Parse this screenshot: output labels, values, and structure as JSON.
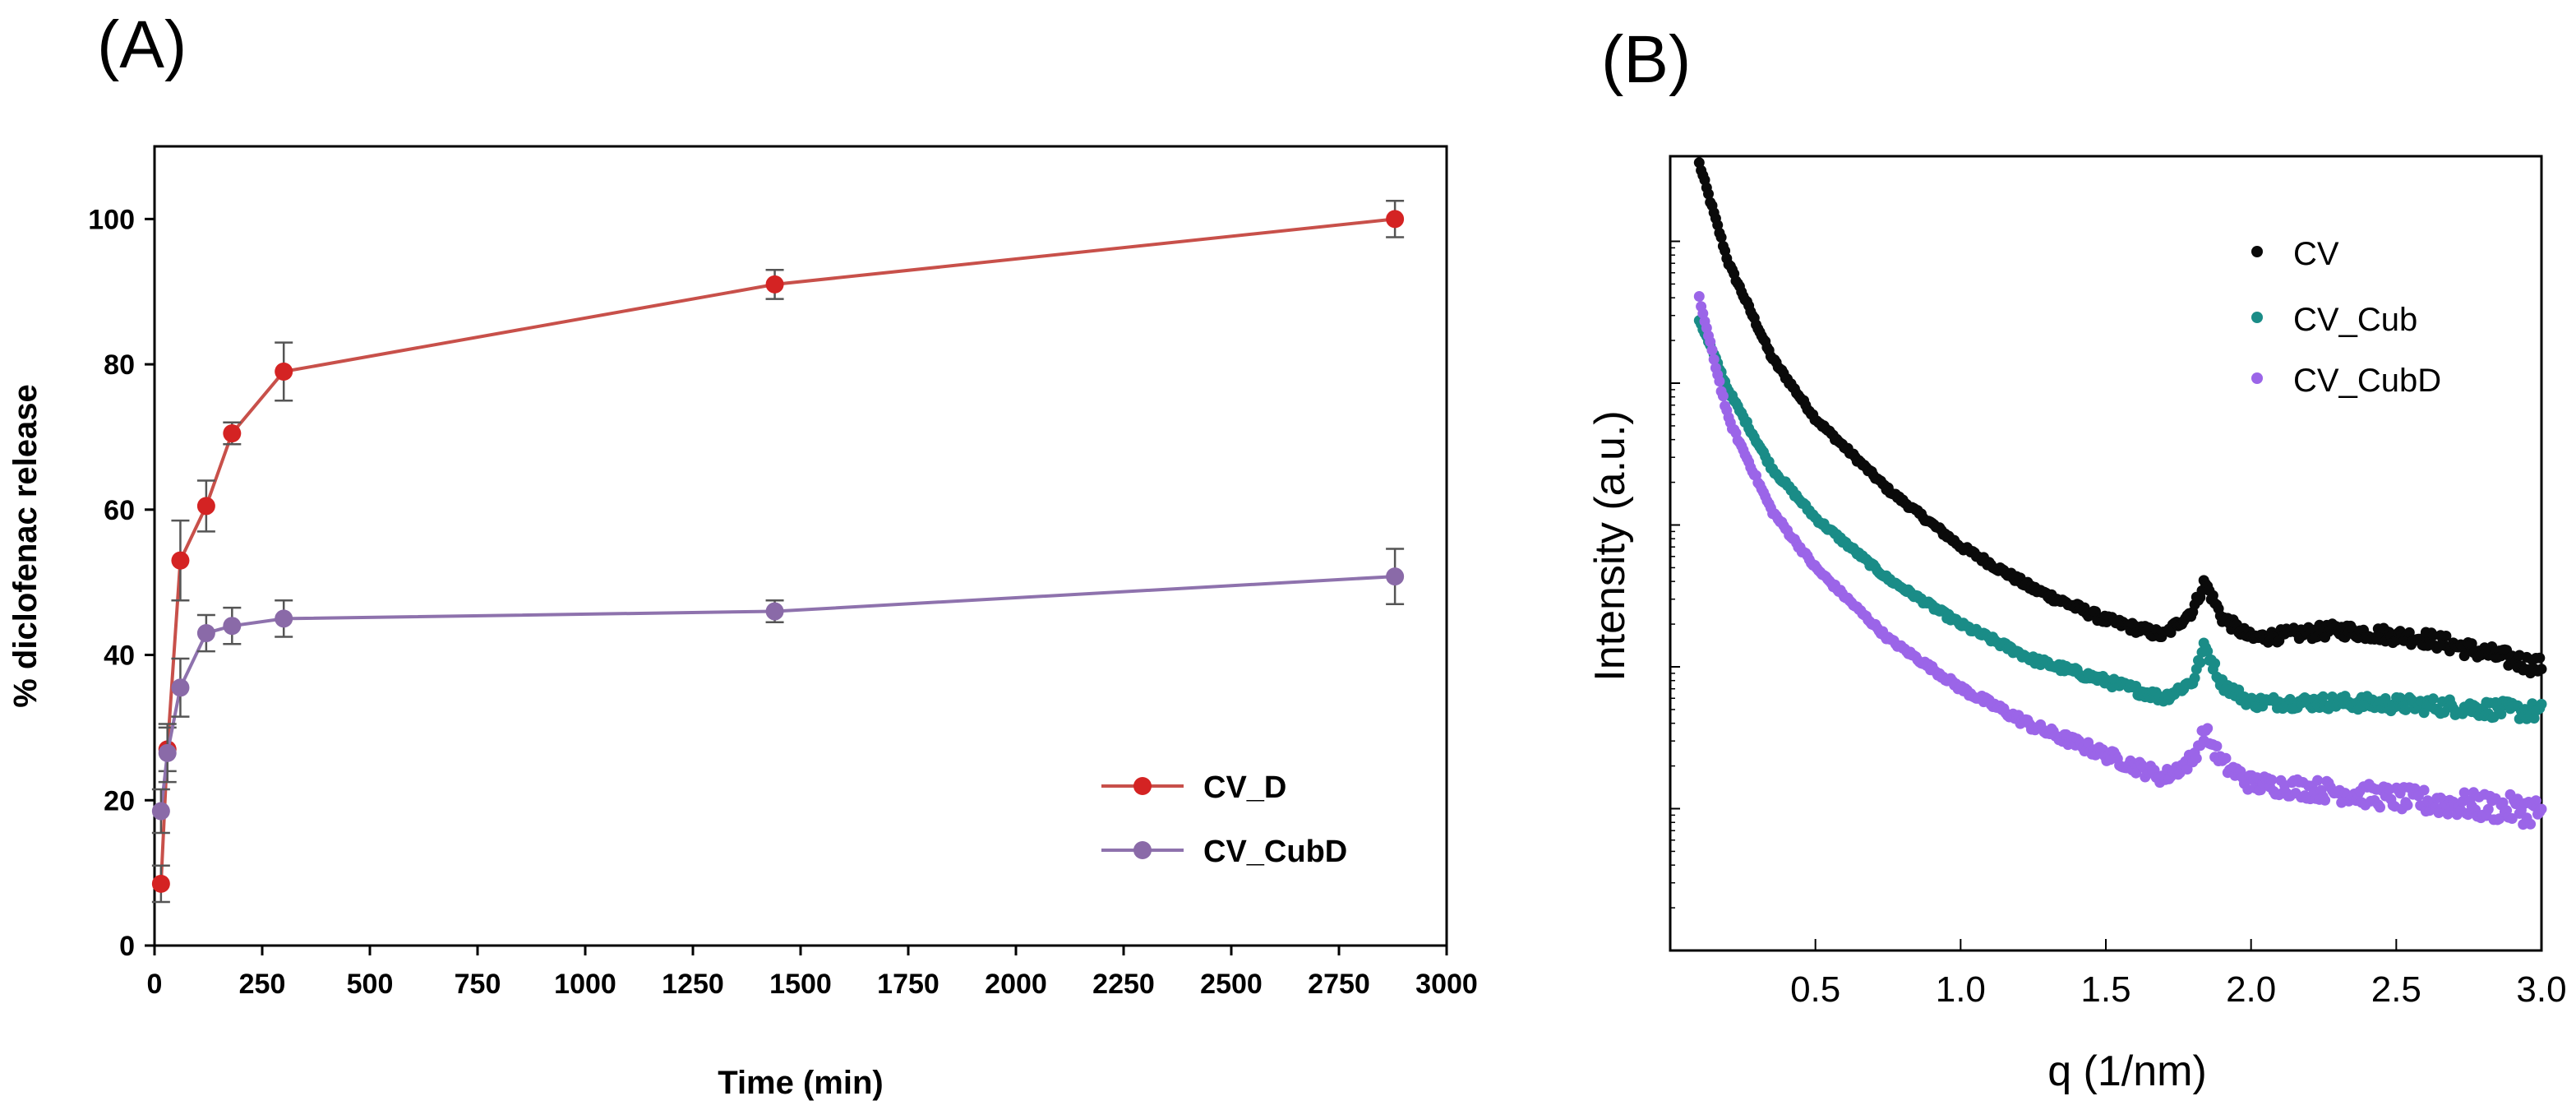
{
  "chart_data": [
    {
      "panel_label": "(A)",
      "type": "line",
      "xlabel": "Time  (min)",
      "ylabel": "% diclofenac  release",
      "xlim": [
        0,
        3000
      ],
      "ylim": [
        0,
        110
      ],
      "xticks": [
        0,
        250,
        500,
        750,
        1000,
        1250,
        1500,
        1750,
        2000,
        2250,
        2500,
        2750,
        3000
      ],
      "yticks": [
        0,
        20,
        40,
        60,
        80,
        100
      ],
      "legend_position": "lower-right",
      "series": [
        {
          "name": "CV_D",
          "color": "#d42323",
          "line_color": "#c8504a",
          "x": [
            15,
            30,
            60,
            120,
            180,
            300,
            1440,
            2880
          ],
          "y": [
            8.5,
            27,
            53,
            60.5,
            70.5,
            79,
            91,
            100
          ],
          "err": [
            2.5,
            3,
            5.5,
            3.5,
            1.5,
            4,
            2,
            2.5
          ]
        },
        {
          "name": "CV_CubD",
          "color": "#8a6aa8",
          "line_color": "#8e72ad",
          "x": [
            15,
            30,
            60,
            120,
            180,
            300,
            1440,
            2880
          ],
          "y": [
            18.5,
            26.5,
            35.5,
            43,
            44,
            45,
            46,
            50.8
          ],
          "err": [
            3,
            4,
            4,
            2.5,
            2.5,
            2.5,
            1.5,
            3.8
          ]
        }
      ]
    },
    {
      "panel_label": "(B)",
      "type": "scatter",
      "xlabel": "q  (1/nm)",
      "ylabel": "Intensity (a.u.)",
      "y_scale": "log",
      "xlim": [
        0,
        3.0
      ],
      "ylim_decades": [
        0,
        5.6
      ],
      "xticks": [
        0.5,
        1.0,
        1.5,
        2.0,
        2.5,
        3.0
      ],
      "xtick_labels": [
        "0.5",
        "1.0",
        "1.5",
        "2.0",
        "2.5",
        "3.0"
      ],
      "ytick_decades": [
        1,
        2,
        3,
        4,
        5
      ],
      "legend_position": "top-right",
      "series": [
        {
          "name": "CV",
          "color": "#0a0a0a",
          "profile": {
            "q": [
              0.1,
              0.2,
              0.35,
              0.5,
              0.75,
              1.0,
              1.25,
              1.5,
              1.7,
              1.8,
              1.84,
              1.9,
              2.0,
              2.3,
              2.6,
              3.0
            ],
            "log_intensity": [
              5.55,
              4.85,
              4.18,
              3.75,
              3.25,
              2.85,
              2.55,
              2.33,
              2.22,
              2.4,
              2.6,
              2.35,
              2.2,
              2.26,
              2.2,
              2.0
            ]
          },
          "peak_q": 1.84
        },
        {
          "name": "CV_Cub",
          "color": "#1a8c87",
          "profile": {
            "q": [
              0.1,
              0.2,
              0.35,
              0.5,
              0.75,
              1.0,
              1.25,
              1.5,
              1.7,
              1.8,
              1.84,
              1.9,
              2.0,
              2.3,
              2.6,
              3.0
            ],
            "log_intensity": [
              4.45,
              3.95,
              3.4,
              3.05,
              2.62,
              2.3,
              2.05,
              1.9,
              1.78,
              1.9,
              2.15,
              1.88,
              1.75,
              1.75,
              1.73,
              1.68
            ]
          },
          "peak_q": 1.84
        },
        {
          "name": "CV_CubD",
          "color": "#9b65e8",
          "profile": {
            "q": [
              0.1,
              0.2,
              0.35,
              0.5,
              0.75,
              1.0,
              1.25,
              1.5,
              1.7,
              1.8,
              1.84,
              1.9,
              2.0,
              2.3,
              2.6,
              3.0
            ],
            "log_intensity": [
              4.6,
              3.75,
              3.1,
              2.7,
              2.2,
              1.85,
              1.58,
              1.38,
              1.22,
              1.35,
              1.55,
              1.32,
              1.18,
              1.12,
              1.05,
              0.98
            ]
          },
          "peak_q": 1.84
        }
      ]
    }
  ]
}
